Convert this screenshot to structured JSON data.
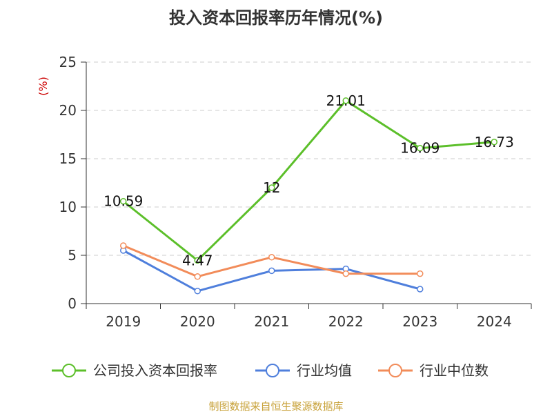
{
  "title": "投入资本回报率历年情况(%)",
  "source": "制图数据来自恒生聚源数据库",
  "chart_data": {
    "type": "line",
    "ylabel": "(%)",
    "xlabel": "",
    "ylim": [
      0,
      25
    ],
    "yticks": [
      0,
      5,
      10,
      15,
      20,
      25
    ],
    "grid": true,
    "legend_position": "bottom",
    "categories": [
      "2019",
      "2020",
      "2021",
      "2022",
      "2023",
      "2024"
    ],
    "series": [
      {
        "name": "公司投入资本回报率",
        "color": "#5cbf2a",
        "values": [
          10.59,
          4.47,
          12,
          21.01,
          16.09,
          16.73
        ],
        "labels": [
          "10.59",
          "4.47",
          "12",
          "21.01",
          "16.09",
          "16.73"
        ]
      },
      {
        "name": "行业均值",
        "color": "#4f7fdc",
        "values": [
          5.5,
          1.3,
          3.4,
          3.6,
          1.5,
          null
        ]
      },
      {
        "name": "行业中位数",
        "color": "#f28c5a",
        "values": [
          6.0,
          2.8,
          4.8,
          3.1,
          3.1,
          null
        ]
      }
    ]
  }
}
